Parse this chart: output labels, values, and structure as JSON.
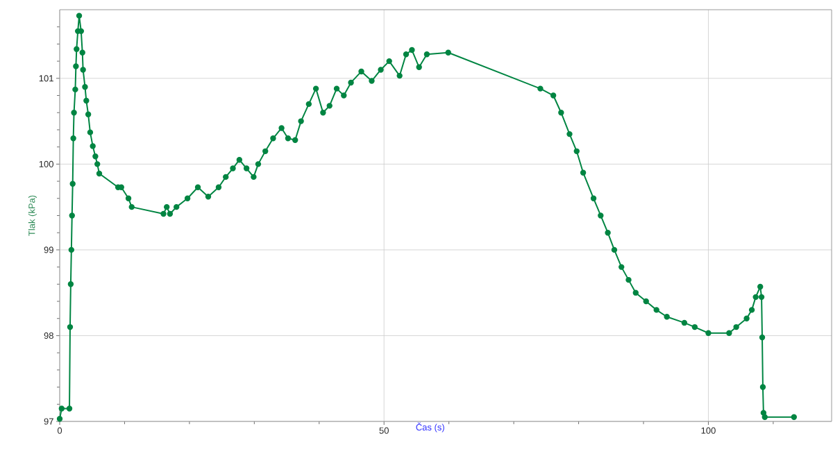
{
  "chart_data": {
    "type": "line",
    "xlabel": "Čas (s)",
    "ylabel": "Tlak (kPa)",
    "xlim": [
      0,
      119
    ],
    "ylim": [
      97,
      101.8
    ],
    "xticks": [
      0,
      {
        "value": 10,
        "label": null
      },
      {
        "value": 20,
        "label": null
      },
      {
        "value": 30,
        "label": null
      },
      {
        "value": 40,
        "label": null
      },
      50,
      {
        "value": 60,
        "label": null
      },
      {
        "value": 70,
        "label": null
      },
      {
        "value": 80,
        "label": null
      },
      {
        "value": 90,
        "label": null
      },
      100,
      {
        "value": 110,
        "label": null
      }
    ],
    "yticks": [
      97,
      {
        "value": 97.2,
        "label": null
      },
      {
        "value": 97.4,
        "label": null
      },
      {
        "value": 97.6,
        "label": null
      },
      {
        "value": 97.8,
        "label": null
      },
      98,
      {
        "value": 98.2,
        "label": null
      },
      {
        "value": 98.4,
        "label": null
      },
      {
        "value": 98.6,
        "label": null
      },
      {
        "value": 98.8,
        "label": null
      },
      99,
      {
        "value": 99.2,
        "label": null
      },
      {
        "value": 99.4,
        "label": null
      },
      {
        "value": 99.6,
        "label": null
      },
      {
        "value": 99.8,
        "label": null
      },
      100,
      {
        "value": 100.2,
        "label": null
      },
      {
        "value": 100.4,
        "label": null
      },
      {
        "value": 100.6,
        "label": null
      },
      {
        "value": 100.8,
        "label": null
      },
      101,
      {
        "value": 101.2,
        "label": null
      },
      {
        "value": 101.4,
        "label": null
      },
      {
        "value": 101.6,
        "label": null
      }
    ],
    "grid": true,
    "marker": "circle",
    "line_style": "solid",
    "series": [
      {
        "color": "#008542",
        "x": [
          0,
          0.3,
          1.5,
          1.6,
          1.7,
          1.8,
          1.9,
          2.0,
          2.1,
          2.2,
          2.4,
          2.5,
          2.6,
          2.8,
          3.0,
          3.3,
          3.5,
          3.6,
          3.9,
          4.1,
          4.4,
          4.7,
          5.1,
          5.5,
          5.8,
          6.1,
          9.0,
          9.5,
          10.6,
          11.1,
          16.0,
          16.5,
          17.0,
          18.0,
          19.7,
          21.3,
          22.9,
          24.5,
          25.6,
          26.7,
          27.7,
          28.8,
          29.9,
          30.6,
          31.7,
          32.9,
          34.2,
          35.2,
          36.3,
          37.2,
          38.4,
          39.5,
          40.6,
          41.6,
          42.7,
          43.8,
          44.9,
          46.5,
          48.1,
          49.5,
          50.8,
          52.4,
          53.4,
          54.3,
          55.4,
          56.6,
          59.9,
          74.1,
          76.1,
          77.3,
          78.6,
          79.7,
          80.7,
          82.3,
          83.4,
          84.5,
          85.5,
          86.6,
          87.7,
          88.8,
          90.4,
          92.0,
          93.6,
          96.3,
          97.9,
          100.0,
          103.2,
          104.3,
          105.9,
          106.7,
          107.3,
          108.0,
          108.2,
          108.3,
          108.4,
          108.5,
          108.7,
          113.2
        ],
        "values": [
          97.03,
          97.15,
          97.15,
          98.1,
          98.6,
          99.0,
          99.4,
          99.77,
          100.3,
          100.6,
          100.87,
          101.14,
          101.34,
          101.55,
          101.73,
          101.55,
          101.3,
          101.1,
          100.9,
          100.74,
          100.58,
          100.37,
          100.21,
          100.09,
          100.0,
          99.89,
          99.73,
          99.73,
          99.6,
          99.5,
          99.42,
          99.5,
          99.42,
          99.5,
          99.6,
          99.73,
          99.62,
          99.73,
          99.85,
          99.95,
          100.05,
          99.95,
          99.85,
          100.0,
          100.15,
          100.3,
          100.42,
          100.3,
          100.28,
          100.5,
          100.7,
          100.88,
          100.6,
          100.68,
          100.88,
          100.8,
          100.95,
          101.08,
          100.97,
          101.1,
          101.2,
          101.03,
          101.28,
          101.33,
          101.13,
          101.28,
          101.3,
          100.88,
          100.8,
          100.6,
          100.35,
          100.15,
          99.9,
          99.6,
          99.4,
          99.2,
          99.0,
          98.8,
          98.65,
          98.5,
          98.4,
          98.3,
          98.22,
          98.15,
          98.1,
          98.03,
          98.03,
          98.1,
          98.2,
          98.3,
          98.45,
          98.57,
          98.45,
          97.98,
          97.4,
          97.1,
          97.05,
          97.05
        ]
      }
    ]
  }
}
